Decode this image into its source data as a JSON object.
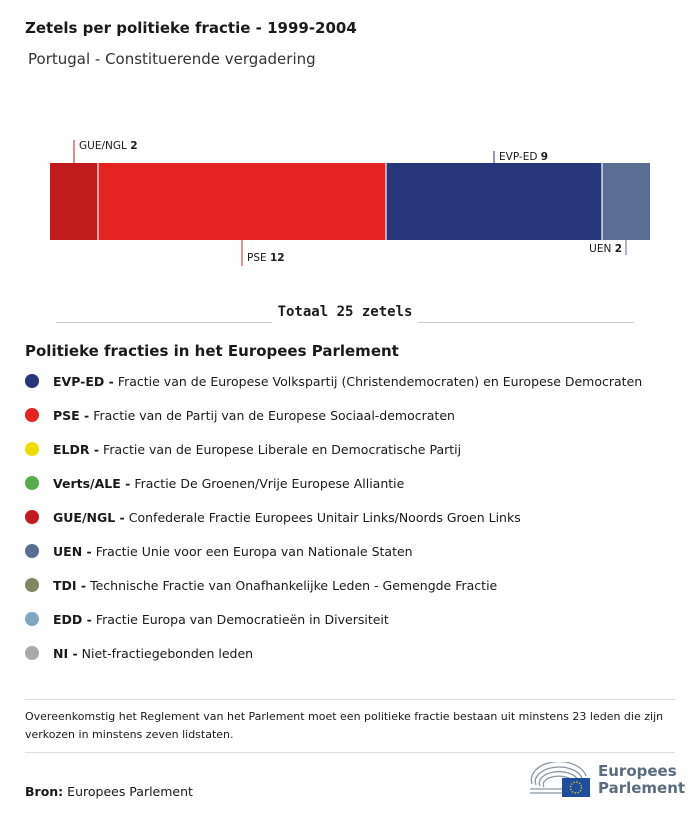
{
  "title": "Zetels per politieke fractie - 1999-2004",
  "subtitle": "Portugal - Constituerende vergadering",
  "chart_data": {
    "type": "bar",
    "orientation": "stacked-horizontal",
    "total_seats": 25,
    "series": [
      {
        "name": "GUE/NGL",
        "value": 2,
        "color": "#c11b1d",
        "label_side": "top"
      },
      {
        "name": "PSE",
        "value": 12,
        "color": "#e52421",
        "label_side": "bottom"
      },
      {
        "name": "EVP-ED",
        "value": 9,
        "color": "#27367b",
        "label_side": "top"
      },
      {
        "name": "UEN",
        "value": 2,
        "color": "#5a6d92",
        "label_side": "bottom"
      }
    ]
  },
  "total_label": "Totaal 25 zetels",
  "legend_title": "Politieke fracties in het Europees Parlement",
  "legend": [
    {
      "abbr": "EVP-ED -",
      "desc": "Fractie van de Europese Volkspartij (Christendemocraten) en Europese Democraten",
      "color": "#27367b"
    },
    {
      "abbr": "PSE -",
      "desc": "Fractie van de Partij van de Europese Sociaal-democraten",
      "color": "#e52421"
    },
    {
      "abbr": "ELDR -",
      "desc": "Fractie van de Europese Liberale en Democratische Partij",
      "color": "#f0dc00"
    },
    {
      "abbr": "Verts/ALE -",
      "desc": "Fractie De Groenen/Vrije Europese Alliantie",
      "color": "#56ad4a"
    },
    {
      "abbr": "GUE/NGL -",
      "desc": "Confederale Fractie Europees Unitair Links/Noords Groen Links",
      "color": "#c11b1d"
    },
    {
      "abbr": "UEN -",
      "desc": "Fractie Unie voor een Europa van Nationale Staten",
      "color": "#5a6d92"
    },
    {
      "abbr": "TDI -",
      "desc": "Technische Fractie van Onafhankelijke Leden - Gemengde Fractie",
      "color": "#7f8763"
    },
    {
      "abbr": "EDD -",
      "desc": "Fractie Europa van Democratieën in Diversiteit",
      "color": "#7fa8c0"
    },
    {
      "abbr": "NI -",
      "desc": "Niet-fractiegebonden leden",
      "color": "#aaaaaa"
    }
  ],
  "note": "Overeenkomstig het Reglement van het Parlement moet een politieke fractie bestaan uit minstens 23 leden die zijn verkozen in minstens zeven lidstaten.",
  "source_label": "Bron:",
  "source_value": "Europees Parlement",
  "logo_text": [
    "Europees",
    "Parlement"
  ]
}
